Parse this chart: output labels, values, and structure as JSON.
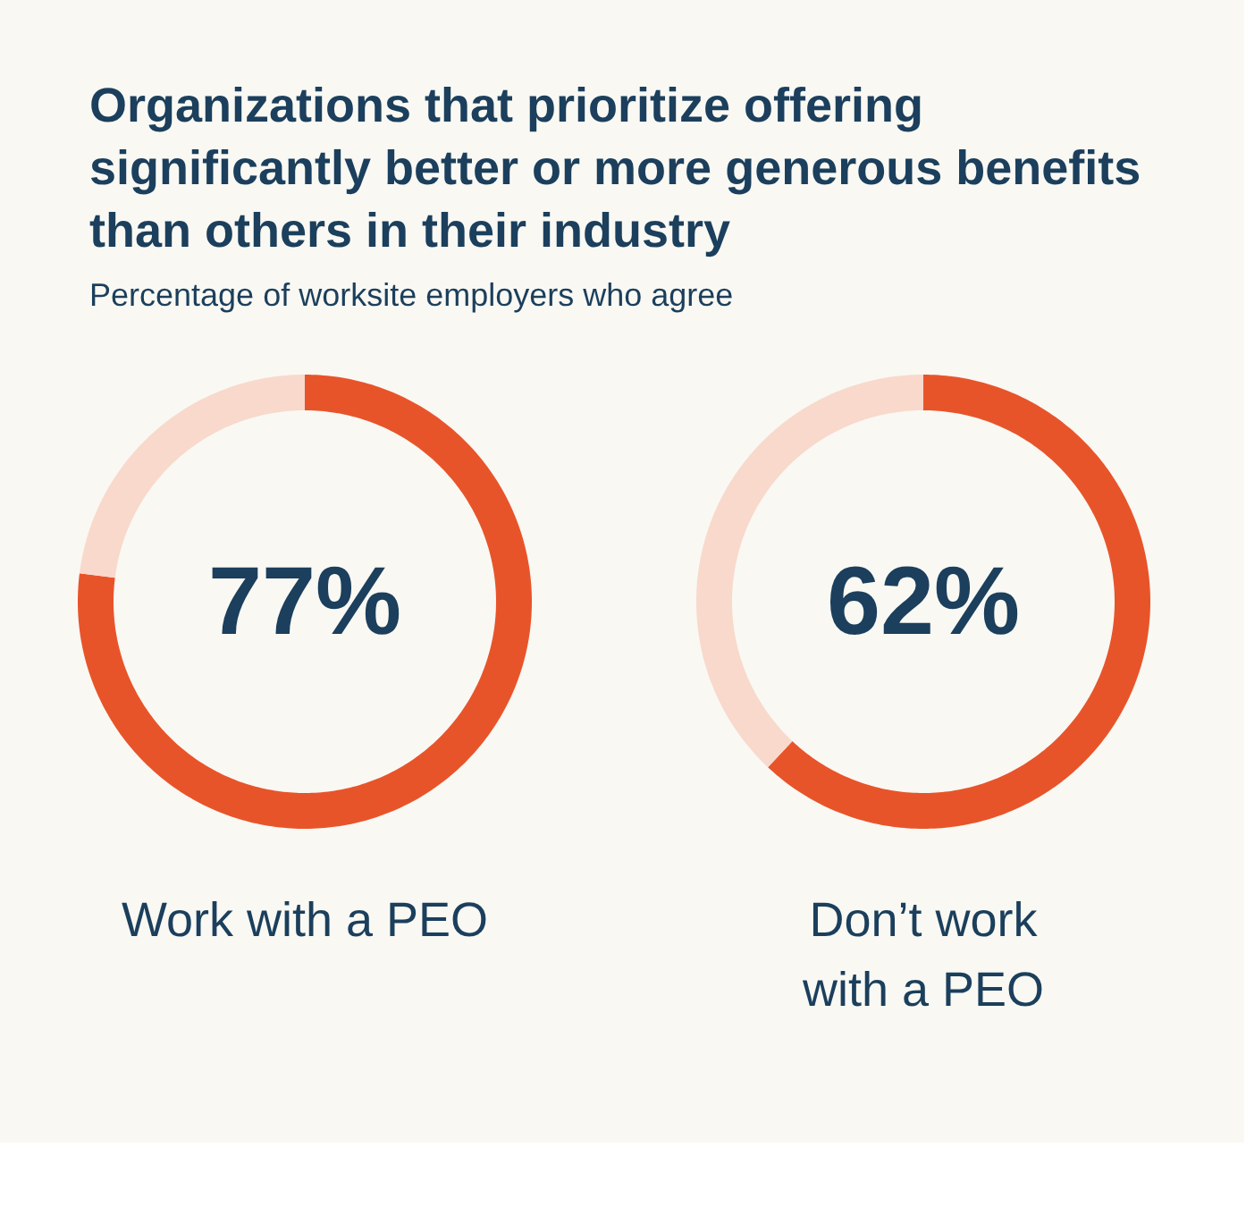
{
  "chart_data": [
    {
      "type": "donut",
      "title": "Organizations that prioritize offering significantly better or more generous benefits than others in their industry",
      "subtitle": "Percentage of worksite employers who agree",
      "xlabel": "Work with a PEO",
      "categories": [
        null,
        null
      ],
      "values": [
        77,
        23
      ],
      "colors": [
        "#e8542a",
        "#f8d9cb"
      ],
      "value_labels": [
        "77%",
        null
      ]
    },
    {
      "type": "donut",
      "xlabel": "Don’t work\nwith a PEO",
      "categories": [
        null,
        null
      ],
      "values": [
        62,
        38
      ],
      "colors": [
        "#e8542a",
        "#f8d9cb"
      ],
      "value_labels": [
        "62%",
        null
      ]
    }
  ]
}
